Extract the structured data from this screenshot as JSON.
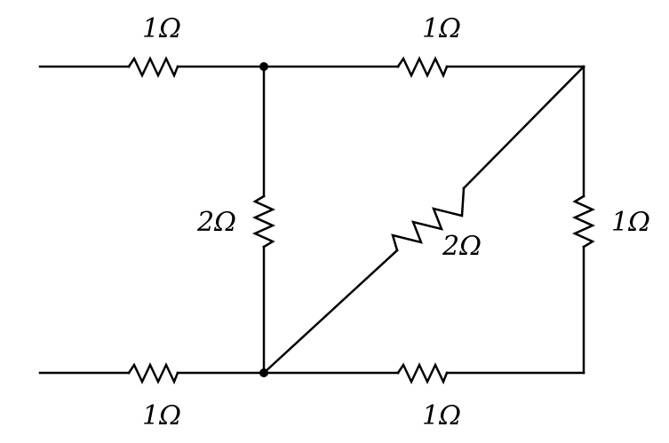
{
  "resistors": {
    "top_left": "1Ω",
    "top_right": "1Ω",
    "middle_vertical": "2Ω",
    "diagonal": "2Ω",
    "right_vertical": "1Ω",
    "bottom_left": "1Ω",
    "bottom_right": "1Ω"
  }
}
